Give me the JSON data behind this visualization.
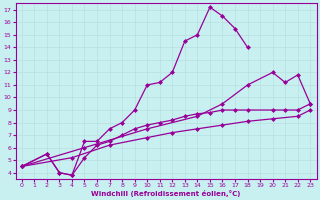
{
  "xlabel": "Windchill (Refroidissement éolien,°C)",
  "bg_color": "#c8f0f0",
  "line_color": "#990099",
  "grid_color": "#b8e0e0",
  "xlim": [
    -0.5,
    23.5
  ],
  "ylim": [
    3.5,
    17.5
  ],
  "xticks": [
    0,
    1,
    2,
    3,
    4,
    5,
    6,
    7,
    8,
    9,
    10,
    11,
    12,
    13,
    14,
    15,
    16,
    17,
    18,
    19,
    20,
    21,
    22,
    23
  ],
  "yticks": [
    4,
    5,
    6,
    7,
    8,
    9,
    10,
    11,
    12,
    13,
    14,
    15,
    16,
    17
  ],
  "curves": [
    {
      "x": [
        0,
        2,
        3,
        4,
        5,
        6,
        7,
        8,
        9,
        10,
        11,
        12,
        13,
        14,
        15,
        16,
        17,
        18
      ],
      "y": [
        4.5,
        5.5,
        4.0,
        3.8,
        6.5,
        6.5,
        7.5,
        8.0,
        9.0,
        11.0,
        11.2,
        12.0,
        14.5,
        15.0,
        17.2,
        16.5,
        15.5,
        14.0
      ]
    },
    {
      "x": [
        0,
        4,
        7,
        10,
        12,
        14,
        16,
        18,
        20,
        22,
        23
      ],
      "y": [
        4.5,
        5.2,
        6.2,
        6.8,
        7.2,
        7.5,
        7.8,
        8.1,
        8.3,
        8.5,
        9.0
      ]
    },
    {
      "x": [
        0,
        2,
        3,
        4,
        5,
        6,
        7,
        8,
        9,
        10,
        11,
        12,
        13,
        14,
        15,
        16,
        17,
        18,
        20,
        21,
        22,
        23
      ],
      "y": [
        4.5,
        5.5,
        4.0,
        3.8,
        5.2,
        6.2,
        6.5,
        7.0,
        7.5,
        7.8,
        8.0,
        8.2,
        8.5,
        8.7,
        8.8,
        9.0,
        9.0,
        9.0,
        9.0,
        9.0,
        9.0,
        9.5
      ]
    },
    {
      "x": [
        0,
        5,
        10,
        14,
        16,
        18,
        20,
        21,
        22,
        23
      ],
      "y": [
        4.5,
        6.0,
        7.5,
        8.5,
        9.5,
        11.0,
        12.0,
        11.2,
        11.8,
        9.5
      ]
    }
  ]
}
